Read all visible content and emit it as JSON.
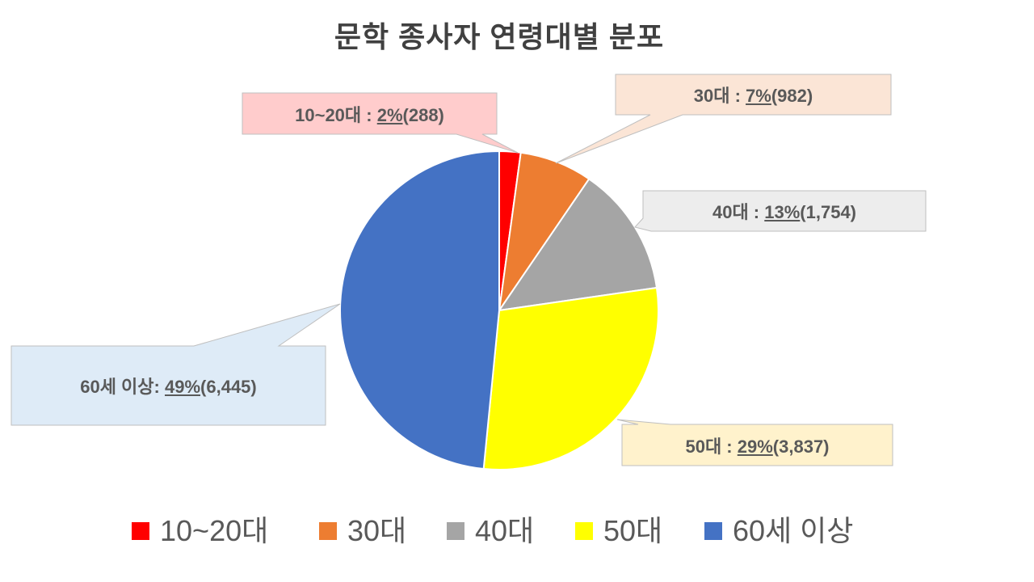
{
  "chart_data": {
    "type": "pie",
    "title": "문학 종사자 연령대별 분포",
    "categories": [
      "10~20대",
      "30대",
      "40대",
      "50대",
      "60세 이상"
    ],
    "values": [
      288,
      982,
      1754,
      3837,
      6445
    ],
    "colors": [
      "#FF0000",
      "#ED7D31",
      "#A5A5A5",
      "#FFFF00",
      "#4472C4"
    ],
    "data_labels": [
      {
        "text": "10~20대 : ",
        "percent": "2%",
        "count": "(288)",
        "fill": "#FFCCCC"
      },
      {
        "text": "30대 : ",
        "percent": "7%",
        "count": "(982)",
        "fill": "#FBE5D6"
      },
      {
        "text": "40대 : ",
        "percent": "13%",
        "count": "(1,754)",
        "fill": "#EDEDED"
      },
      {
        "text": "50대 : ",
        "percent": "29%",
        "count": "(3,837)",
        "fill": "#FFF2CC"
      },
      {
        "text": "60세 이상: ",
        "percent": "49%",
        "count": "(6,445)",
        "fill": "#DEEBF7"
      }
    ],
    "legend": "bottom"
  }
}
